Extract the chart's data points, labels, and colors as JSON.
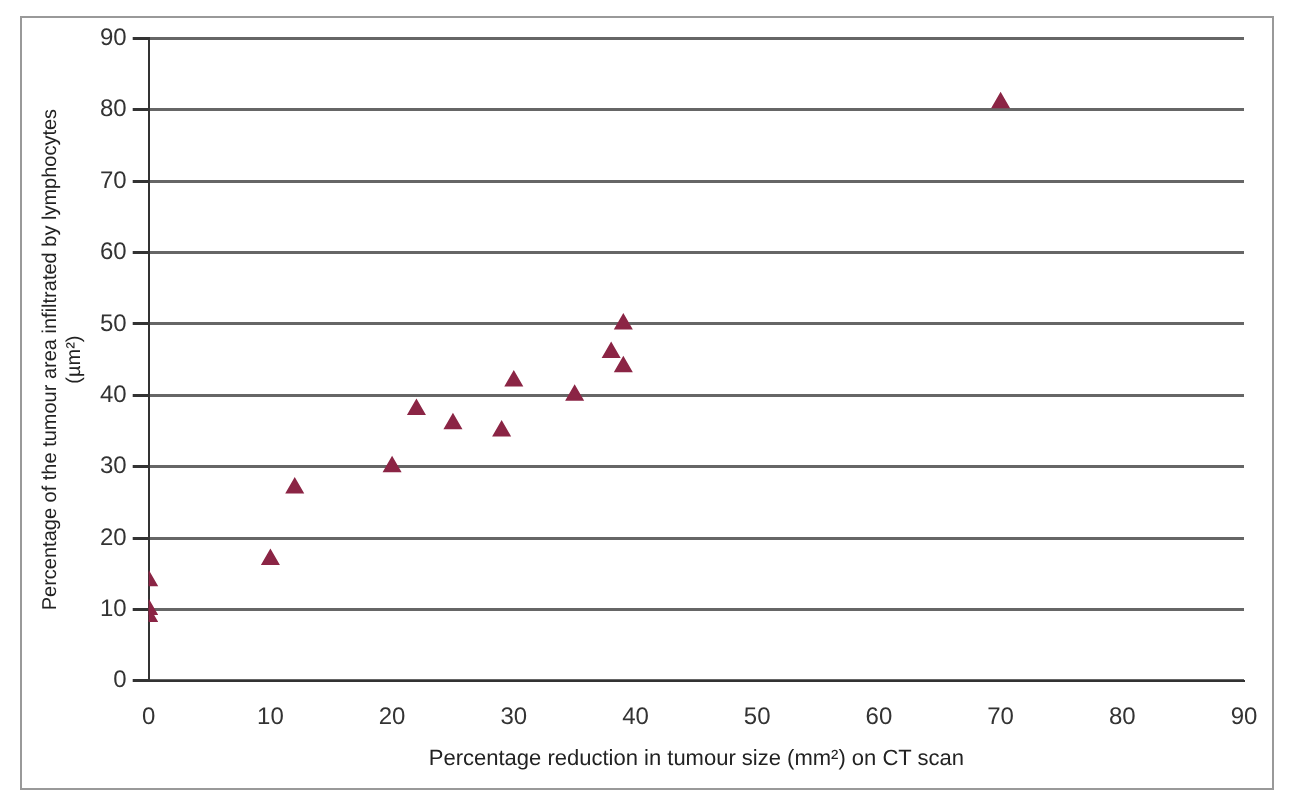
{
  "chart_data": {
    "type": "scatter",
    "xlabel": "Percentage reduction in tumour size (mm²) on CT scan",
    "ylabel": "Percentage of the tumour area infiltrated by lymphocytes (µm²)",
    "x": [
      0,
      0,
      0,
      10,
      12,
      20,
      22,
      25,
      29,
      30,
      35,
      38,
      39,
      39,
      70
    ],
    "values": [
      14,
      10,
      9,
      17,
      27,
      30,
      38,
      36,
      35,
      42,
      40,
      46,
      50,
      44,
      81
    ],
    "color": "#8b2545",
    "marker": "triangle",
    "xlim": [
      0,
      90
    ],
    "xticks": [
      0,
      10,
      20,
      30,
      40,
      50,
      60,
      70,
      80,
      90
    ],
    "ylim": [
      0,
      90
    ],
    "yticks": [
      0,
      10,
      20,
      30,
      40,
      50,
      60,
      70,
      80,
      90
    ],
    "grid": "y",
    "legend": false
  }
}
